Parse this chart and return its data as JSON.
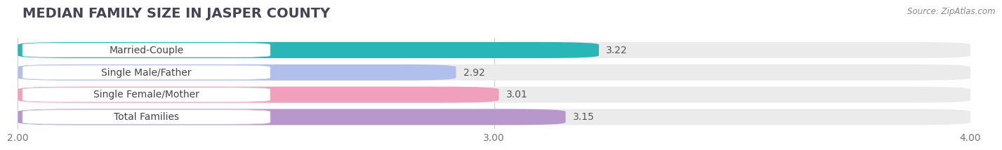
{
  "title": "MEDIAN FAMILY SIZE IN JASPER COUNTY",
  "source": "Source: ZipAtlas.com",
  "categories": [
    "Married-Couple",
    "Single Male/Father",
    "Single Female/Mother",
    "Total Families"
  ],
  "values": [
    3.22,
    2.92,
    3.01,
    3.15
  ],
  "bar_colors": [
    "#29b6b6",
    "#b0bfec",
    "#f0a0bc",
    "#b898cc"
  ],
  "xlim": [
    2.0,
    4.0
  ],
  "xticks": [
    2.0,
    3.0,
    4.0
  ],
  "xticklabels": [
    "2.00",
    "3.00",
    "4.00"
  ],
  "background_color": "#ffffff",
  "bar_background_color": "#ebebeb",
  "title_fontsize": 14,
  "label_fontsize": 10,
  "value_fontsize": 10,
  "tick_fontsize": 10
}
